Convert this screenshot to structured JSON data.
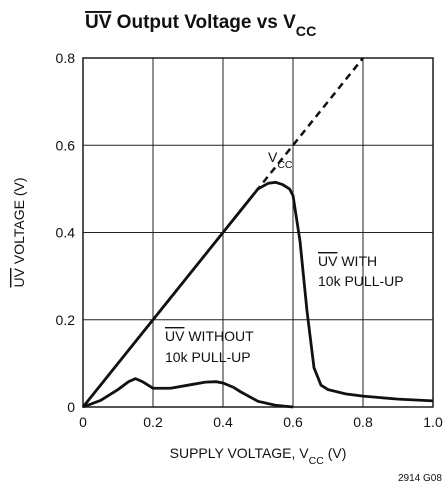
{
  "chart_data": {
    "type": "line",
    "title": [
      {
        "text": "UV",
        "overline": true
      },
      {
        "text": " Output Voltage vs V"
      },
      {
        "text": "CC",
        "sub": true
      }
    ],
    "x_label": [
      {
        "text": "SUPPLY VOLTAGE, V"
      },
      {
        "text": "CC",
        "sub": true
      },
      {
        "text": " (V)"
      }
    ],
    "y_label": [
      {
        "text": "UV",
        "overline": true
      },
      {
        "text": " VOLTAGE (V)"
      }
    ],
    "xlim": [
      0,
      1
    ],
    "ylim": [
      0,
      0.8
    ],
    "xticks": [
      0,
      0.2,
      0.4,
      0.6,
      0.8,
      {
        "value": 1,
        "label": "1.0"
      }
    ],
    "yticks": [
      0,
      0.2,
      0.4,
      0.6,
      0.8
    ],
    "grid": true,
    "series": [
      {
        "color": "#111",
        "dashed": true,
        "x": [
          0,
          0.8
        ],
        "values": [
          0,
          0.8
        ]
      },
      {
        "color": "#111",
        "dashed": false,
        "x": [
          0,
          0.1,
          0.2,
          0.3,
          0.4,
          0.45,
          0.5,
          0.53,
          0.55,
          0.57,
          0.59,
          0.6,
          0.62,
          0.64,
          0.66,
          0.68,
          0.7,
          0.75,
          0.8,
          0.9,
          1.0
        ],
        "values": [
          0,
          0.1,
          0.2,
          0.3,
          0.4,
          0.45,
          0.5,
          0.513,
          0.515,
          0.51,
          0.5,
          0.485,
          0.38,
          0.22,
          0.09,
          0.05,
          0.04,
          0.03,
          0.025,
          0.018,
          0.014
        ]
      },
      {
        "color": "#111",
        "dashed": false,
        "x": [
          0,
          0.05,
          0.1,
          0.13,
          0.15,
          0.17,
          0.2,
          0.25,
          0.3,
          0.35,
          0.38,
          0.4,
          0.43,
          0.45,
          0.5,
          0.55,
          0.6
        ],
        "values": [
          0,
          0.015,
          0.04,
          0.058,
          0.065,
          0.058,
          0.043,
          0.043,
          0.05,
          0.057,
          0.058,
          0.055,
          0.045,
          0.035,
          0.013,
          0.004,
          0
        ]
      }
    ],
    "annotations": [
      {
        "lines": [
          [
            {
              "text": "V"
            },
            {
              "text": "CC",
              "sub": true
            }
          ]
        ]
      },
      {
        "lines": [
          [
            {
              "text": "UV",
              "overline": true
            },
            {
              "text": " WITH"
            }
          ],
          [
            {
              "text": "10k PULL-UP"
            }
          ]
        ]
      },
      {
        "lines": [
          [
            {
              "text": "UV",
              "overline": true
            },
            {
              "text": " WITHOUT"
            }
          ],
          [
            {
              "text": "10k PULL-UP"
            }
          ]
        ]
      },
      {
        "lines": [
          [
            {
              "text": "2914 G08"
            }
          ]
        ]
      }
    ]
  }
}
